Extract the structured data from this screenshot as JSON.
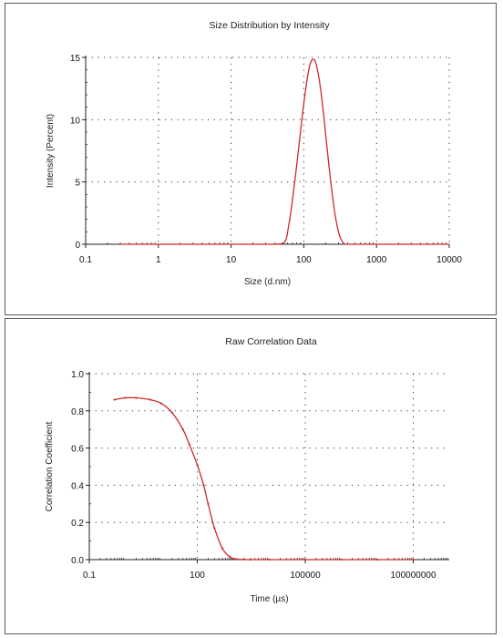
{
  "colors": {
    "curve": "#cc2a2a",
    "axis": "#222222",
    "grid": "#333333",
    "border": "#5a5a5a"
  },
  "chart_data": [
    {
      "type": "line",
      "title": "Size Distribution by Intensity",
      "xlabel": "Size (d.nm)",
      "ylabel": "Intensity (Percent)",
      "xscale": "log",
      "xlim": [
        0.1,
        10000
      ],
      "ylim": [
        0,
        15
      ],
      "xticks": [
        0.1,
        1,
        10,
        100,
        1000,
        10000
      ],
      "xtick_labels": [
        "0.1",
        "1",
        "10",
        "100",
        "1000",
        "10000"
      ],
      "yticks": [
        0,
        5,
        10,
        15
      ],
      "ytick_labels": [
        "0",
        "5",
        "10",
        "15"
      ],
      "grid": true,
      "series": [
        {
          "x": [
            0.3,
            1,
            10,
            40,
            55,
            62,
            70,
            80,
            90,
            100,
            110,
            120,
            130,
            140,
            150,
            165,
            180,
            200,
            220,
            250,
            280,
            310,
            340,
            370,
            400,
            1000,
            10000
          ],
          "y": [
            0,
            0,
            0,
            0,
            0.2,
            1.5,
            3.6,
            6.4,
            9.0,
            11.3,
            13.1,
            14.3,
            14.8,
            14.8,
            14.3,
            13.0,
            11.3,
            8.8,
            6.5,
            3.7,
            1.8,
            0.7,
            0.2,
            0,
            0,
            0,
            0
          ]
        }
      ]
    },
    {
      "type": "line",
      "title": "Raw Correlation Data",
      "xlabel": "Time (µs)",
      "ylabel": "Correlation Coefficient",
      "xscale": "log",
      "xlim": [
        0.1,
        1000000000
      ],
      "ylim": [
        0,
        1
      ],
      "xticks": [
        0.1,
        100,
        100000,
        100000000
      ],
      "xtick_labels": [
        "0.1",
        "100",
        "100000",
        "100000000"
      ],
      "yticks": [
        0,
        0.2,
        0.4,
        0.6,
        0.8,
        1.0
      ],
      "ytick_labels": [
        "0.0",
        "0.2",
        "0.4",
        "0.6",
        "0.8",
        "1.0"
      ],
      "grid": true,
      "series": [
        {
          "x": [
            0.5,
            1,
            2,
            5,
            10,
            20,
            40,
            60,
            100,
            150,
            200,
            300,
            500,
            800,
            1200,
            2000,
            3000,
            10000,
            100000,
            1000000,
            10000000,
            100000000
          ],
          "y": [
            0.86,
            0.87,
            0.87,
            0.86,
            0.84,
            0.79,
            0.7,
            0.62,
            0.51,
            0.4,
            0.3,
            0.17,
            0.06,
            0.015,
            0.003,
            0.001,
            0,
            0,
            0,
            0,
            0,
            0
          ]
        }
      ]
    }
  ]
}
